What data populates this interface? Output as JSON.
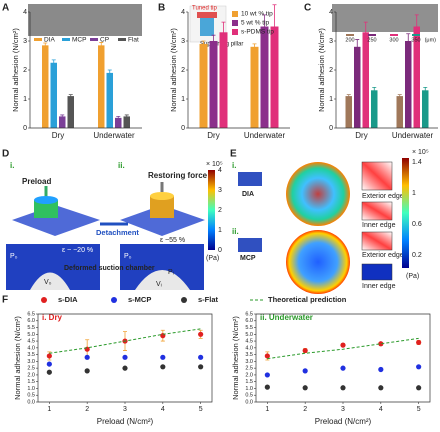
{
  "chart_data": [
    {
      "type": "bar",
      "panel": "A",
      "ylabel": "Normal adhesion (N/cm²)",
      "categories": [
        "Dry",
        "Underwater"
      ],
      "ylim": [
        0,
        4
      ],
      "yticks": [
        0,
        1,
        2,
        3,
        4
      ],
      "series": [
        {
          "name": "DIA",
          "color": "#f0a030",
          "values": [
            2.85,
            2.85
          ],
          "errors": [
            0.08,
            0.1
          ]
        },
        {
          "name": "MCP",
          "color": "#2aa0d8",
          "values": [
            2.25,
            1.9
          ],
          "errors": [
            0.1,
            0.1
          ]
        },
        {
          "name": "CP",
          "color": "#7b3f98",
          "values": [
            0.4,
            0.35
          ],
          "errors": [
            0.05,
            0.05
          ]
        },
        {
          "name": "Flat",
          "color": "#555555",
          "values": [
            1.1,
            0.4
          ],
          "errors": [
            0.05,
            0.05
          ]
        }
      ]
    },
    {
      "type": "bar",
      "panel": "B",
      "ylabel": "Normal adhesion (N/cm²)",
      "annotations": [
        "Tuned tip",
        "Supporting pillar"
      ],
      "categories": [
        "Dry",
        "Underwater"
      ],
      "ylim": [
        0,
        4
      ],
      "yticks": [
        0,
        1,
        2,
        3,
        4
      ],
      "series": [
        {
          "name": "10 wt % tip",
          "color": "#f0a030",
          "values": [
            2.9,
            2.8
          ],
          "errors": [
            0.1,
            0.1
          ]
        },
        {
          "name": "5 wt % tip",
          "color": "#8b2f8b",
          "values": [
            3.0,
            3.5
          ],
          "errors": [
            0.2,
            0.4
          ]
        },
        {
          "name": "s-PDMS tip",
          "color": "#e0307a",
          "values": [
            3.3,
            3.5
          ],
          "errors": [
            0.35,
            0.75
          ]
        }
      ]
    },
    {
      "type": "bar",
      "panel": "C",
      "ylabel": "Normal adhesion (N/cm²)",
      "legend_unit": "(μm)",
      "categories": [
        "Dry",
        "Underwater"
      ],
      "ylim": [
        0,
        4
      ],
      "yticks": [
        0,
        1,
        2,
        3,
        4
      ],
      "series": [
        {
          "name": "200",
          "color": "#a0785a",
          "values": [
            1.1,
            1.1
          ],
          "errors": [
            0.05,
            0.05
          ]
        },
        {
          "name": "250",
          "color": "#7b2a7b",
          "values": [
            2.8,
            3.0
          ],
          "errors": [
            0.25,
            0.25
          ]
        },
        {
          "name": "300",
          "color": "#e0307a",
          "values": [
            3.3,
            3.5
          ],
          "errors": [
            0.35,
            0.4
          ]
        },
        {
          "name": "350",
          "color": "#1a9a8a",
          "values": [
            1.3,
            1.3
          ],
          "errors": [
            0.1,
            0.1
          ]
        }
      ]
    },
    {
      "type": "scatter",
      "panel": "F",
      "subtitle": "i. Dry",
      "subtitle_color": "#e02020",
      "xlabel": "Preload (N/cm²)",
      "ylabel": "Normal adhesion (N/cm²)",
      "x": [
        1,
        2,
        3,
        4,
        5
      ],
      "xlim": [
        0.7,
        5.3
      ],
      "xticks": [
        1,
        2,
        3,
        4,
        5
      ],
      "ylim": [
        0,
        6.5
      ],
      "yticks": [
        {
          "value": 0,
          "label": "0.0"
        },
        0.5,
        {
          "value": 1,
          "label": "1.0"
        },
        1.5,
        {
          "value": 2,
          "label": "2.0"
        },
        2.5,
        {
          "value": 3,
          "label": "3.0"
        },
        3.5,
        {
          "value": 4,
          "label": "4.0"
        },
        4.5,
        {
          "value": 5,
          "label": "5.0"
        },
        5.5,
        {
          "value": 6,
          "label": "6.0"
        },
        6.5
      ],
      "series": [
        {
          "name": "s-DIA",
          "color": "#e02020",
          "values": [
            3.4,
            3.9,
            4.5,
            4.9,
            5.0
          ],
          "errors": [
            0.3,
            0.7,
            0.7,
            0.4,
            0.3
          ]
        },
        {
          "name": "s-MCP",
          "color": "#2030e0",
          "values": [
            2.8,
            3.3,
            3.3,
            3.3,
            3.3
          ]
        },
        {
          "name": "s-Flat",
          "color": "#333333",
          "values": [
            2.2,
            2.3,
            2.5,
            2.6,
            2.6
          ]
        },
        {
          "name": "Theoretical prediction",
          "color": "#2a9a2a",
          "style": "dashed",
          "values": [
            3.6,
            4.0,
            4.5,
            5.0,
            5.4
          ]
        }
      ]
    },
    {
      "type": "scatter",
      "subtitle": "ii. Underwater",
      "subtitle_color": "#2a9a2a",
      "xlabel": "Preload (N/cm²)",
      "ylabel": "Normal adhesion (N/cm²)",
      "x": [
        1,
        2,
        3,
        4,
        5
      ],
      "xlim": [
        0.7,
        5.3
      ],
      "xticks": [
        1,
        2,
        3,
        4,
        5
      ],
      "ylim": [
        0,
        6.5
      ],
      "yticks": [
        {
          "value": 0,
          "label": "0.0"
        },
        0.5,
        {
          "value": 1,
          "label": "1.0"
        },
        1.5,
        {
          "value": 2,
          "label": "2.0"
        },
        2.5,
        {
          "value": 3,
          "label": "3.0"
        },
        3.5,
        {
          "value": 4,
          "label": "4.0"
        },
        4.5,
        {
          "value": 5,
          "label": "5.0"
        },
        5.5,
        {
          "value": 6,
          "label": "6.0"
        },
        6.5
      ],
      "series": [
        {
          "color": "#e02020",
          "values": [
            3.4,
            3.8,
            4.2,
            4.3,
            4.4
          ],
          "errors": [
            0.3,
            0.15,
            0.1,
            0.1,
            0.15
          ]
        },
        {
          "color": "#2030e0",
          "values": [
            2.0,
            2.3,
            2.5,
            2.4,
            2.6
          ]
        },
        {
          "color": "#333333",
          "values": [
            1.1,
            1.05,
            1.05,
            1.05,
            1.05
          ]
        },
        {
          "color": "#2a9a2a",
          "style": "dashed",
          "values": [
            3.2,
            3.6,
            3.9,
            4.3,
            4.7
          ]
        }
      ]
    }
  ],
  "diagrams": {
    "D": {
      "panel": "D",
      "step_1": "i.",
      "step_2": "ii.",
      "preload": "Preload",
      "restoring_force": "Restoring force",
      "detachment": "Detachment",
      "strain_1": "ε ~ −20 %",
      "strain_2": "ε ~55 %",
      "p0_1": "P₀",
      "v0": "V₀",
      "p0_2": "P₀",
      "pi": "Pᵢ",
      "vi": "Vᵢ",
      "chamber": "Deformed suction chamber",
      "colorbar_scale": "× 10⁵",
      "colorbar_ticks": [
        "4",
        "3",
        "2",
        "1",
        "0"
      ],
      "colorbar_unit": "(Pa)"
    },
    "E": {
      "panel": "E",
      "step_1": "i.",
      "step_2": "ii.",
      "dia": "DIA",
      "mcp": "MCP",
      "exterior_1": "Exterior edge",
      "inner_1": "Inner edge",
      "exterior_2": "Exterior edge",
      "inner_2": "Inner edge",
      "colorbar_scale": "× 10⁵",
      "colorbar_ticks": [
        "1.4",
        "1",
        "0.6",
        "0.2"
      ],
      "colorbar_unit": "(Pa)"
    }
  }
}
